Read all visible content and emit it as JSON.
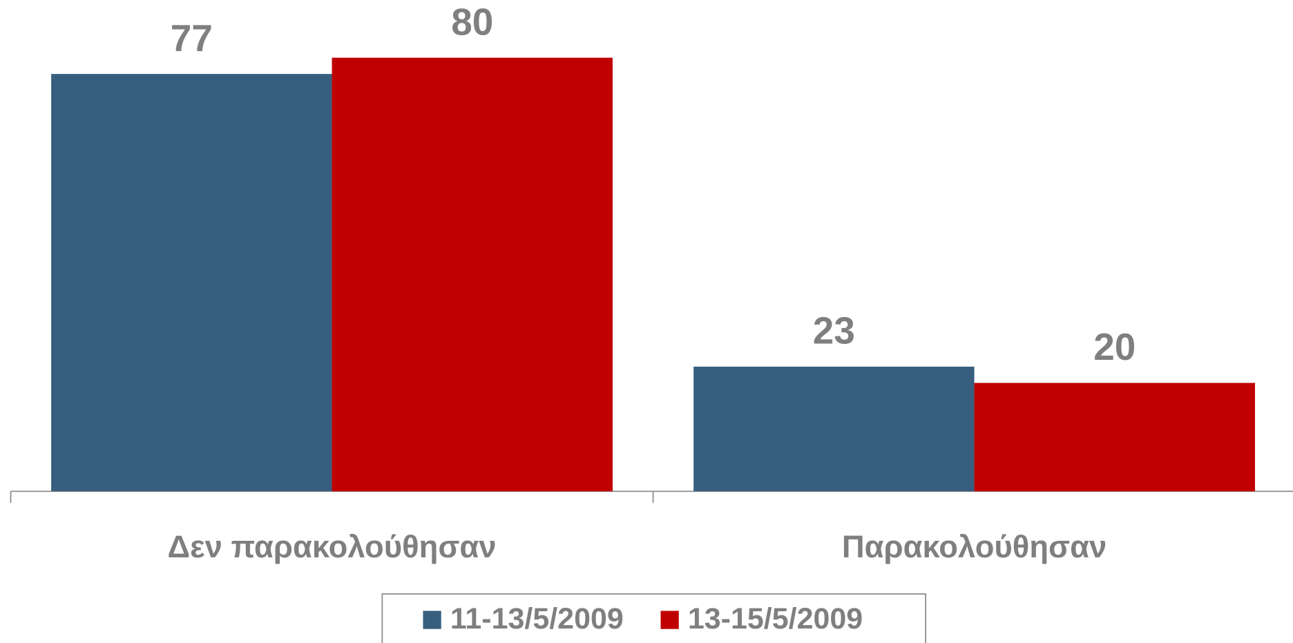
{
  "chart_data": {
    "type": "bar",
    "categories": [
      "Δεν παρακολούθησαν",
      "Παρακολούθησαν"
    ],
    "series": [
      {
        "name": "11-13/5/2009",
        "color": "#375e7f",
        "values": [
          77,
          23
        ]
      },
      {
        "name": "13-15/5/2009",
        "color": "#c00000",
        "values": [
          80,
          20
        ]
      }
    ],
    "legend": "bottom"
  }
}
